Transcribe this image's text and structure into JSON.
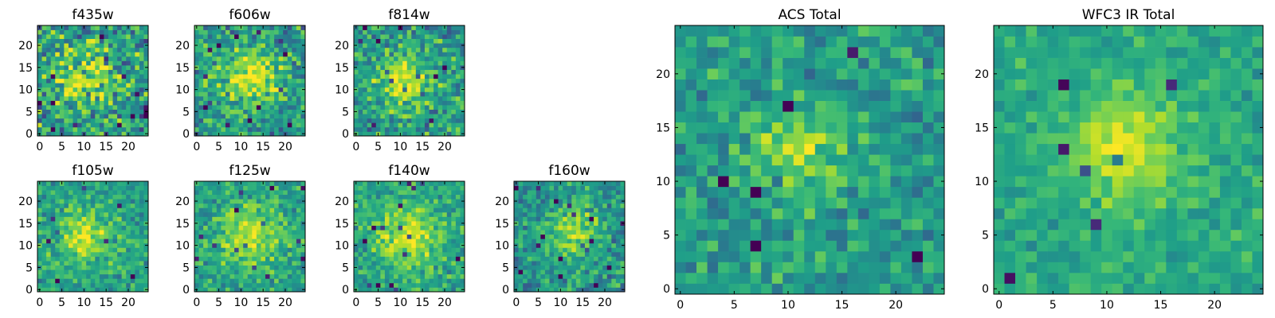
{
  "chart_data": [
    {
      "type": "heatmap",
      "title": "f435w",
      "x_ticks": [
        0,
        5,
        10,
        15,
        20
      ],
      "y_ticks": [
        0,
        5,
        10,
        15,
        20
      ],
      "xlim": [
        -0.5,
        24.5
      ],
      "ylim": [
        -0.5,
        24.5
      ],
      "grid_size": 25,
      "colormap": "viridis",
      "blob": [
        10,
        12
      ],
      "peak": 0.35,
      "sigma": 4.5,
      "noise": 0.75,
      "base": 0.55,
      "seed": 11
    },
    {
      "type": "heatmap",
      "title": "f606w",
      "x_ticks": [
        0,
        5,
        10,
        15,
        20
      ],
      "y_ticks": [
        0,
        5,
        10,
        15,
        20
      ],
      "xlim": [
        -0.5,
        24.5
      ],
      "ylim": [
        -0.5,
        24.5
      ],
      "grid_size": 25,
      "colormap": "viridis",
      "blob": [
        12,
        13
      ],
      "peak": 0.4,
      "sigma": 4.5,
      "noise": 0.6,
      "base": 0.55,
      "seed": 23
    },
    {
      "type": "heatmap",
      "title": "f814w",
      "x_ticks": [
        0,
        5,
        10,
        15,
        20
      ],
      "y_ticks": [
        0,
        5,
        10,
        15,
        20
      ],
      "xlim": [
        -0.5,
        24.5
      ],
      "ylim": [
        -0.5,
        24.5
      ],
      "grid_size": 25,
      "colormap": "viridis",
      "blob": [
        11,
        12
      ],
      "peak": 0.4,
      "sigma": 4,
      "noise": 0.6,
      "base": 0.55,
      "seed": 37
    },
    {
      "type": "heatmap",
      "title": "f105w",
      "x_ticks": [
        0,
        5,
        10,
        15,
        20
      ],
      "y_ticks": [
        0,
        5,
        10,
        15,
        20
      ],
      "xlim": [
        -0.5,
        24.5
      ],
      "ylim": [
        -0.5,
        24.5
      ],
      "grid_size": 25,
      "colormap": "viridis",
      "blob": [
        10,
        12
      ],
      "peak": 0.35,
      "sigma": 4,
      "noise": 0.45,
      "base": 0.58,
      "seed": 41
    },
    {
      "type": "heatmap",
      "title": "f125w",
      "x_ticks": [
        0,
        5,
        10,
        15,
        20
      ],
      "y_ticks": [
        0,
        5,
        10,
        15,
        20
      ],
      "xlim": [
        -0.5,
        24.5
      ],
      "ylim": [
        -0.5,
        24.5
      ],
      "grid_size": 25,
      "colormap": "viridis",
      "blob": [
        12,
        12
      ],
      "peak": 0.3,
      "sigma": 5,
      "noise": 0.45,
      "base": 0.58,
      "seed": 53
    },
    {
      "type": "heatmap",
      "title": "f140w",
      "x_ticks": [
        0,
        5,
        10,
        15,
        20
      ],
      "y_ticks": [
        0,
        5,
        10,
        15,
        20
      ],
      "xlim": [
        -0.5,
        24.5
      ],
      "ylim": [
        -0.5,
        24.5
      ],
      "grid_size": 25,
      "colormap": "viridis",
      "blob": [
        12,
        12
      ],
      "peak": 0.35,
      "sigma": 5,
      "noise": 0.45,
      "base": 0.58,
      "seed": 67
    },
    {
      "type": "heatmap",
      "title": "f160w",
      "x_ticks": [
        0,
        5,
        10,
        15,
        20
      ],
      "y_ticks": [
        0,
        5,
        10,
        15,
        20
      ],
      "xlim": [
        -0.5,
        24.5
      ],
      "ylim": [
        -0.5,
        24.5
      ],
      "grid_size": 25,
      "colormap": "viridis",
      "blob": [
        13,
        13
      ],
      "peak": 0.35,
      "sigma": 4,
      "noise": 0.5,
      "base": 0.52,
      "seed": 79
    },
    {
      "type": "heatmap",
      "title": "ACS Total",
      "x_ticks": [
        0,
        5,
        10,
        15,
        20
      ],
      "y_ticks": [
        0,
        5,
        10,
        15,
        20
      ],
      "xlim": [
        -0.5,
        24.5
      ],
      "ylim": [
        -0.5,
        24.5
      ],
      "grid_size": 25,
      "colormap": "viridis",
      "blob": [
        11,
        12.5
      ],
      "peak": 0.3,
      "sigma": 3,
      "noise": 0.45,
      "base": 0.55,
      "seed": 97
    },
    {
      "type": "heatmap",
      "title": "WFC3 IR Total",
      "x_ticks": [
        0,
        5,
        10,
        15,
        20
      ],
      "y_ticks": [
        0,
        5,
        10,
        15,
        20
      ],
      "xlim": [
        -0.5,
        24.5
      ],
      "ylim": [
        -0.5,
        24.5
      ],
      "grid_size": 25,
      "colormap": "viridis",
      "blob": [
        12,
        13
      ],
      "peak": 0.35,
      "sigma": 3.5,
      "noise": 0.3,
      "base": 0.6,
      "seed": 113
    }
  ]
}
